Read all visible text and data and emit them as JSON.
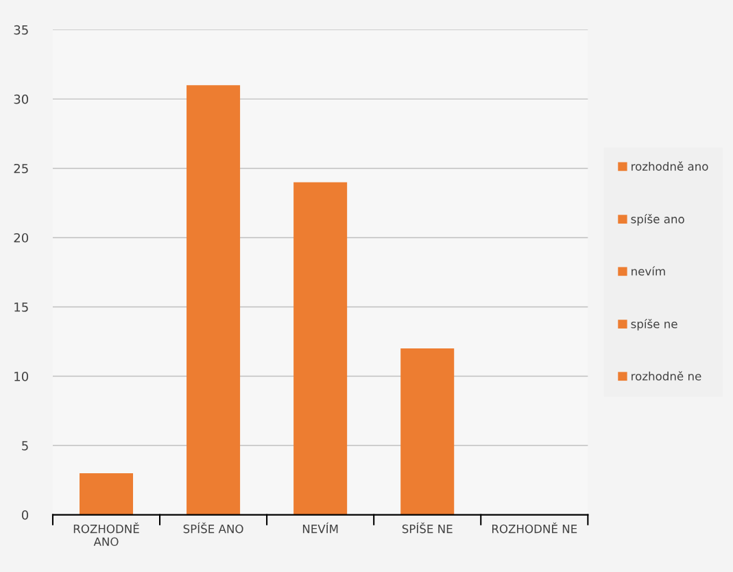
{
  "chart_data": {
    "type": "bar",
    "categories": [
      "ROZHODNĚ ANO",
      "SPÍŠE ANO",
      "NEVÍM",
      "SPÍŠE NE",
      "ROZHODNĚ NE"
    ],
    "series": [
      {
        "name": "rozhodně ano",
        "color": "#ed7d31",
        "values": [
          3,
          null,
          null,
          null,
          null
        ]
      },
      {
        "name": "spíše ano",
        "color": "#ed7d31",
        "values": [
          null,
          31,
          null,
          null,
          null
        ]
      },
      {
        "name": "nevím",
        "color": "#ed7d31",
        "values": [
          null,
          null,
          24,
          null,
          null
        ]
      },
      {
        "name": "spíše ne",
        "color": "#ed7d31",
        "values": [
          null,
          null,
          null,
          12,
          null
        ]
      },
      {
        "name": "rozhodně ne",
        "color": "#ed7d31",
        "values": [
          null,
          null,
          null,
          null,
          0
        ]
      }
    ],
    "ylim": [
      0,
      35
    ],
    "yticks": [
      0,
      5,
      10,
      15,
      20,
      25,
      30,
      35
    ],
    "grid": "y",
    "legend": "right"
  }
}
